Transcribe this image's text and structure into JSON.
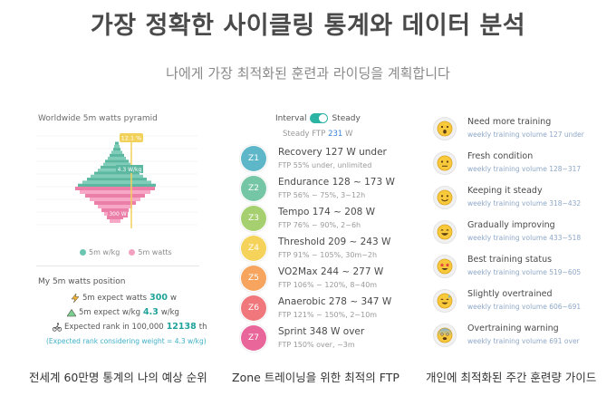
{
  "header": {
    "title": "가장 정확한 사이클링 통계와 데이터 분석",
    "subtitle": "나에게 가장 최적화된 훈련과 라이딩을 계획합니다"
  },
  "pyramid": {
    "title": "Worldwide 5m watts pyramid",
    "marker_label": "12.1 %",
    "label_wkg": "4.3 W/kg",
    "label_watts": "300 W",
    "legend": [
      {
        "label": "5m w/kg",
        "color": "#6cc5b0"
      },
      {
        "label": "5m watts",
        "color": "#f3a1c0"
      }
    ],
    "colors": {
      "top_fill": "#7fcdb9",
      "top_dark": "#5db8a1",
      "bottom_fill": "#f6a8c6",
      "bottom_dark": "#ec7fa8",
      "marker": "#f2d15a"
    }
  },
  "position": {
    "title": "My 5m watts position",
    "stats": [
      {
        "label": "5m expect watts",
        "value": "300",
        "unit": "w",
        "icon": "lightning-icon"
      },
      {
        "label": "5m expect w/kg",
        "value": "4.3",
        "unit": "w/kg",
        "icon": "mountain-icon"
      },
      {
        "label": "Expected rank in 100,000",
        "value": "12138",
        "unit": "th",
        "icon": "cyclist-icon"
      }
    ],
    "note": "(Expected rank considering weight = 4.3 w/kg)"
  },
  "zones_panel": {
    "toggle_left": "Interval",
    "toggle_right": "Steady",
    "ftp_label": "Steady FTP",
    "ftp_value": "231",
    "ftp_unit": "W",
    "zones": [
      {
        "id": "Z1",
        "name": "Recovery  127 W under",
        "desc": "FTP 55% under, unlimited",
        "color": "#5db7c9"
      },
      {
        "id": "Z2",
        "name": "Endurance  128 ~ 173 W",
        "desc": "FTP 56% ~ 75%, 3~12h",
        "color": "#74c6a4"
      },
      {
        "id": "Z3",
        "name": "Tempo  174 ~ 208 W",
        "desc": "FTP 76% ~ 90%, 2~6h",
        "color": "#a6d070"
      },
      {
        "id": "Z4",
        "name": "Threshold  209 ~ 243 W",
        "desc": "FTP 91% ~ 105%, 30m~2h",
        "color": "#f5d35a"
      },
      {
        "id": "Z5",
        "name": "VO2Max  244 ~ 277 W",
        "desc": "FTP 106% ~ 120%, 8~40m",
        "color": "#f6a45e"
      },
      {
        "id": "Z6",
        "name": "Anaerobic  278 ~ 347 W",
        "desc": "FTP 121% ~ 150%, 2~10m",
        "color": "#f0787d"
      },
      {
        "id": "Z7",
        "name": "Sprint  348 W over",
        "desc": "FTP 150% over, ~3m",
        "color": "#e8669a"
      }
    ]
  },
  "guide": {
    "items": [
      {
        "name": "Need more training",
        "volume": "weekly training volume 127 under",
        "icon": "surprised-face-icon"
      },
      {
        "name": "Fresh condition",
        "volume": "weekly training volume 128~317",
        "icon": "neutral-face-icon"
      },
      {
        "name": "Keeping it steady",
        "volume": "weekly training volume 318~432",
        "icon": "smiling-face-icon"
      },
      {
        "name": "Gradually improving",
        "volume": "weekly training volume 433~518",
        "icon": "grinning-face-icon"
      },
      {
        "name": "Best training status",
        "volume": "weekly training volume 519~605",
        "icon": "star-eyes-face-icon"
      },
      {
        "name": "Slightly overtrained",
        "volume": "weekly training volume 606~691",
        "icon": "sweat-face-icon"
      },
      {
        "name": "Overtraining warning",
        "volume": "weekly training volume 691 over",
        "icon": "fearful-face-icon"
      }
    ]
  },
  "captions": {
    "left": "전세계 60만명 통계의 나의 예상 순위",
    "middle": "Zone 트레이닝을 위한 최적의 FTP",
    "right": "개인에 최적화된 주간 훈련량 가이드"
  }
}
